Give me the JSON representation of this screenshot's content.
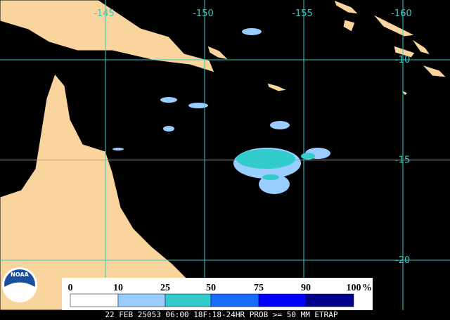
{
  "map": {
    "lon_labels": [
      -145,
      -150,
      -155,
      -160
    ],
    "lat_labels": [
      -10,
      -15,
      -20
    ]
  },
  "legend": {
    "ticks": [
      0,
      10,
      25,
      50,
      75,
      90,
      100
    ],
    "unit": "%",
    "colors": [
      "#ffffff",
      "#99ccff",
      "#33cccc",
      "#1a6cff",
      "#0000ff",
      "#00008b"
    ]
  },
  "logo": "NOAA",
  "footer": "22 FEB 25053 06:00 18F:18-24HR PROB >= 50 MM ETRAP"
}
